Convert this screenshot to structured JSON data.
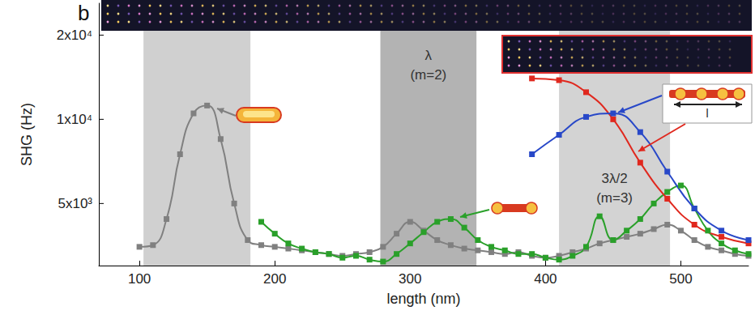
{
  "chart_data": {
    "type": "line",
    "panel": "b",
    "xlabel": "length (nm)",
    "ylabel": "SHG (Hz)",
    "xlim": [
      70,
      550
    ],
    "xticks": [
      100,
      200,
      300,
      400,
      500
    ],
    "ylim": [
      3000,
      26000
    ],
    "yticks": [
      {
        "value": 5000,
        "label": "5x10³"
      },
      {
        "value": 10000,
        "label": "1x10⁴"
      },
      {
        "value": 20000,
        "label": "2x10⁴"
      }
    ],
    "log": "y",
    "grid": false,
    "marker": "square",
    "bands": [
      {
        "xlim": [
          103,
          182
        ],
        "color": "#d0d0d0"
      },
      {
        "xlim": [
          278,
          349
        ],
        "color": "#b3b3b3",
        "label": [
          "λ",
          "(m=2)"
        ]
      },
      {
        "xlim": [
          410,
          492
        ],
        "color": "#d3d3d3",
        "label": [
          "3λ/2",
          "(m=3)"
        ]
      }
    ],
    "annotations": [
      "l"
    ],
    "series": [
      {
        "color": "#808080",
        "x": [
          100,
          110,
          120,
          130,
          140,
          150,
          160,
          170,
          180,
          190,
          200,
          210,
          220,
          230,
          240,
          250,
          260,
          270,
          280,
          290,
          300,
          310,
          320,
          330,
          340,
          350,
          360,
          370,
          380,
          390,
          400,
          410,
          420,
          430,
          440,
          450,
          460,
          470,
          480,
          490,
          500,
          510,
          520,
          530,
          540,
          550
        ],
        "values": [
          3500,
          3550,
          4400,
          7500,
          10500,
          11200,
          8500,
          5000,
          3700,
          3550,
          3500,
          3450,
          3400,
          3350,
          3300,
          3250,
          3300,
          3350,
          3500,
          3900,
          4300,
          4000,
          3700,
          3550,
          3450,
          3400,
          3350,
          3300,
          3350,
          3250,
          3200,
          3250,
          3350,
          3450,
          3600,
          3700,
          3800,
          3900,
          4050,
          4200,
          4000,
          3700,
          3500,
          3400,
          3300,
          3250
        ]
      },
      {
        "color": "#2aa02a",
        "x": [
          190,
          200,
          210,
          220,
          230,
          240,
          250,
          260,
          270,
          280,
          290,
          300,
          310,
          320,
          330,
          340,
          350,
          360,
          370,
          380,
          390,
          400,
          410,
          420,
          430,
          440,
          450,
          460,
          470,
          480,
          490,
          500,
          510,
          520,
          530,
          540,
          550
        ],
        "values": [
          4300,
          3900,
          3600,
          3450,
          3350,
          3300,
          3200,
          3250,
          3150,
          3100,
          3300,
          3600,
          3950,
          4300,
          4400,
          4100,
          3700,
          3500,
          3400,
          3300,
          3300,
          3200,
          3150,
          3250,
          3500,
          4500,
          3700,
          4000,
          4400,
          5000,
          5500,
          5800,
          4800,
          4000,
          3600,
          3400,
          3300
        ]
      },
      {
        "color": "#e0281e",
        "x": [
          390,
          410,
          430,
          450,
          470,
          490,
          510,
          530,
          550
        ],
        "values": [
          14000,
          13800,
          12500,
          10000,
          7000,
          5200,
          4200,
          3800,
          3600
        ]
      },
      {
        "color": "#2848c8",
        "x": [
          390,
          410,
          430,
          450,
          470,
          490,
          510,
          530,
          550
        ],
        "values": [
          7500,
          8800,
          10200,
          10500,
          9000,
          6500,
          4800,
          4000,
          3700
        ]
      }
    ]
  }
}
